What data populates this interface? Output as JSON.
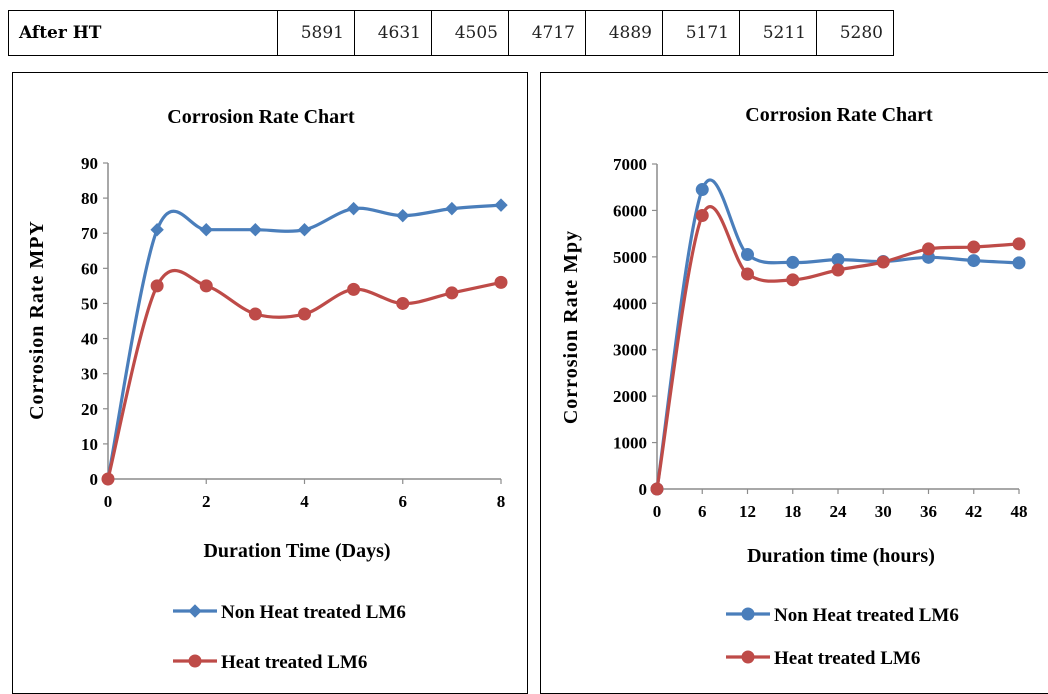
{
  "table": {
    "row_label": "After HT",
    "values": [
      "5891",
      "4631",
      "4505",
      "4717",
      "4889",
      "5171",
      "5211",
      "5280"
    ]
  },
  "chart_data": [
    {
      "type": "line",
      "title": "Corrosion Rate Chart",
      "xlabel": "Duration Time (Days)",
      "ylabel": "Corrosion Rate MPY",
      "xlim": [
        0,
        8
      ],
      "ylim": [
        0,
        90
      ],
      "xticks": [
        "0",
        "2",
        "4",
        "6",
        "8"
      ],
      "yticks": [
        "0",
        "10",
        "20",
        "30",
        "40",
        "50",
        "60",
        "70",
        "80",
        "90"
      ],
      "x": [
        0,
        1,
        2,
        3,
        4,
        5,
        6,
        7,
        8
      ],
      "smooth": true,
      "grid": false,
      "legend_position": "bottom",
      "series": [
        {
          "name": "Non Heat treated LM6",
          "color": "#4a7ebb",
          "marker": "diamond",
          "values": [
            0,
            71,
            71,
            71,
            71,
            77,
            75,
            77,
            78
          ]
        },
        {
          "name": "Heat treated LM6",
          "color": "#be4b48",
          "marker": "circle",
          "values": [
            0,
            55,
            55,
            47,
            47,
            54,
            50,
            53,
            56
          ]
        }
      ]
    },
    {
      "type": "line",
      "title": "Corrosion Rate Chart",
      "xlabel": "Duration time (hours)",
      "ylabel": "Corrosion Rate Mpy",
      "xlim": [
        0,
        48
      ],
      "ylim": [
        0,
        7000
      ],
      "xticks": [
        "0",
        "6",
        "12",
        "18",
        "24",
        "30",
        "36",
        "42",
        "48"
      ],
      "yticks": [
        "0",
        "1000",
        "2000",
        "3000",
        "4000",
        "5000",
        "6000",
        "7000"
      ],
      "x": [
        0,
        6,
        12,
        18,
        24,
        30,
        36,
        42,
        48
      ],
      "smooth": true,
      "grid": false,
      "legend_position": "bottom",
      "series": [
        {
          "name": "Non Heat treated LM6",
          "color": "#4a7ebb",
          "marker": "circle",
          "values": [
            0,
            6450,
            5050,
            4880,
            4940,
            4900,
            4990,
            4920,
            4870
          ]
        },
        {
          "name": "Heat treated LM6",
          "color": "#be4b48",
          "marker": "circle",
          "values": [
            0,
            5891,
            4631,
            4505,
            4717,
            4889,
            5171,
            5211,
            5280
          ]
        }
      ]
    }
  ]
}
